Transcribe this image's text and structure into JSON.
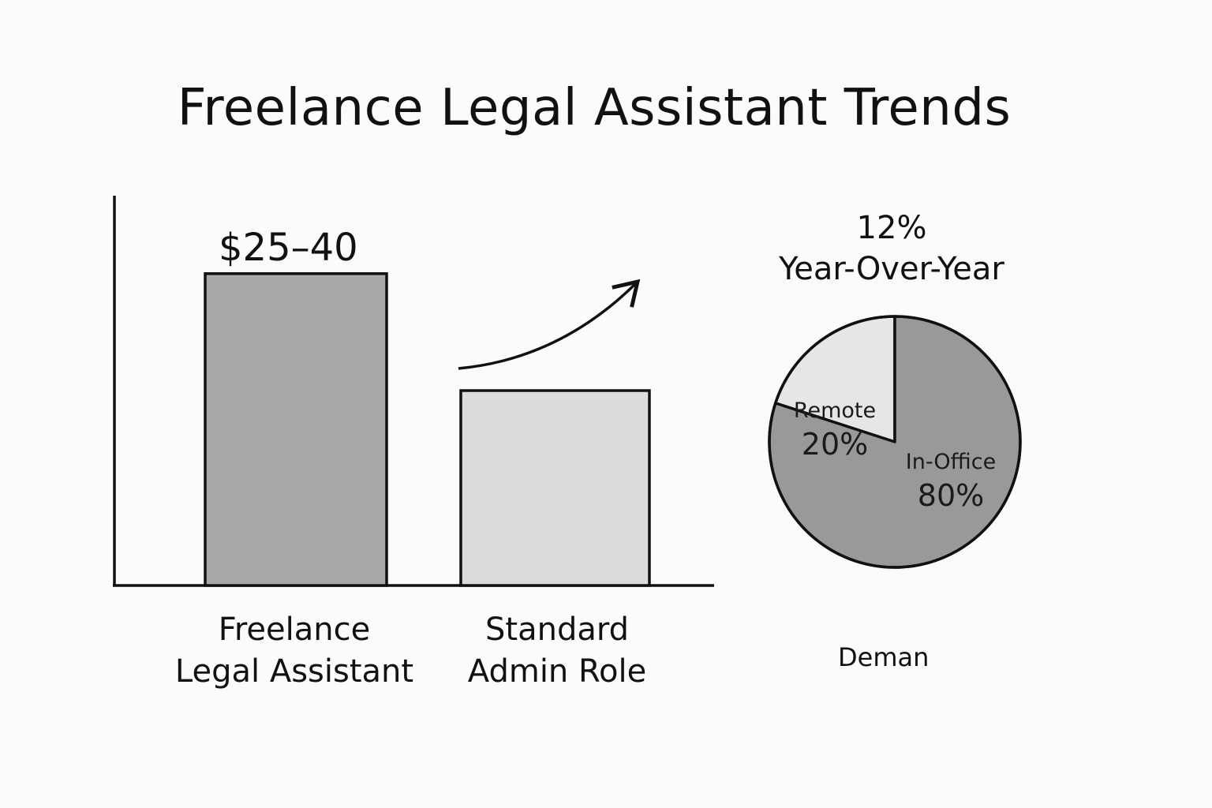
{
  "title": "Freelance Legal Assistant Trends",
  "chart_data": [
    {
      "type": "bar",
      "categories": [
        [
          "Freelance",
          "Legal Assistant"
        ],
        [
          "Standard",
          "Admin Role"
        ]
      ],
      "values": [
        40,
        25
      ],
      "value_labels": [
        "$25–40",
        ""
      ],
      "bar_colors": [
        "#a9a9a9",
        "#dcdcdc"
      ],
      "ylim": [
        0,
        50
      ],
      "xlabel": "",
      "ylabel": "",
      "annotation": "upward-trend-arrow"
    },
    {
      "type": "pie",
      "heading": [
        "12%",
        "Year-Over-Year"
      ],
      "slices": [
        {
          "label": "Remote",
          "pct_label": "20%",
          "value": 20,
          "color": "#e6e6e6"
        },
        {
          "label": "In-Office",
          "pct_label": "80%",
          "value": 80,
          "color": "#999999"
        }
      ],
      "footer": "Deman"
    }
  ]
}
